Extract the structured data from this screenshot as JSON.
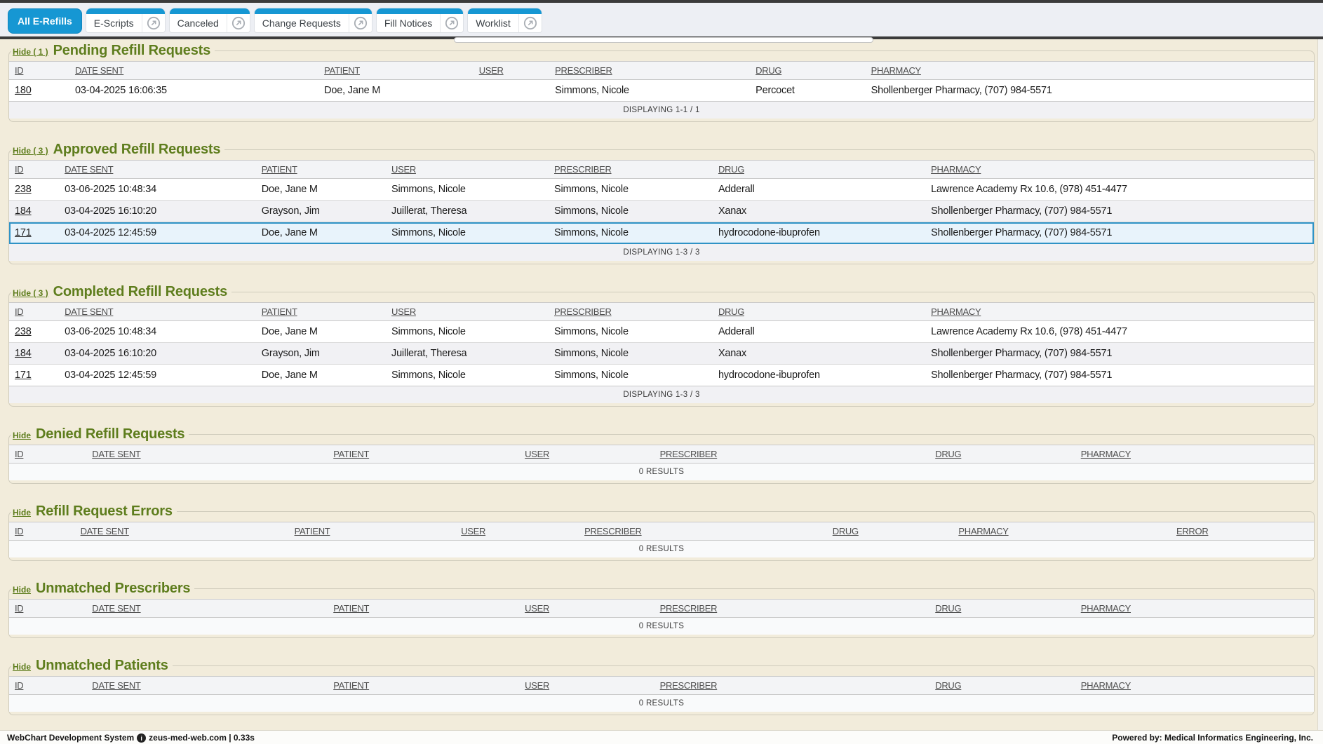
{
  "colors": {
    "section_title_green": "#5e7d1d",
    "tab_blue": "#1697d3",
    "highlight_bg": "#e8f3fb",
    "highlight_border": "#2f93c6",
    "page_beige": "#f2ecdb"
  },
  "tabs": [
    {
      "label": "All E-Refills",
      "active": true,
      "external": false
    },
    {
      "label": "E-Scripts",
      "active": false,
      "external": true
    },
    {
      "label": "Canceled",
      "active": false,
      "external": true
    },
    {
      "label": "Change Requests",
      "active": false,
      "external": true
    },
    {
      "label": "Fill Notices",
      "active": false,
      "external": true
    },
    {
      "label": "Worklist",
      "active": false,
      "external": true
    }
  ],
  "sections": [
    {
      "hide_label": "Hide ( 1 )",
      "title": "Pending Refill Requests",
      "columns": [
        {
          "label": "ID",
          "width": "4.6%"
        },
        {
          "label": "DATE SENT",
          "width": "19.0%"
        },
        {
          "label": "PATIENT",
          "width": "11.8%"
        },
        {
          "label": "USER",
          "width": "5.8%"
        },
        {
          "label": "PRESCRIBER",
          "width": "15.3%"
        },
        {
          "label": "DRUG",
          "width": "8.8%"
        },
        {
          "label": "PHARMACY",
          "width": "34.2%"
        }
      ],
      "rows": [
        [
          "180",
          "03-04-2025 16:06:35",
          "Doe, Jane M",
          "",
          "Simmons, Nicole",
          "Percocet",
          "Shollenberger Pharmacy, (707) 984-5571"
        ]
      ],
      "highlight_row": null,
      "status_text": "DISPLAYING 1-1 / 1",
      "status_type": "displaying"
    },
    {
      "hide_label": "Hide ( 3 )",
      "title": "Approved Refill Requests",
      "columns": [
        {
          "label": "ID",
          "width": "3.8%"
        },
        {
          "label": "DATE SENT",
          "width": "15.0%"
        },
        {
          "label": "PATIENT",
          "width": "9.9%"
        },
        {
          "label": "USER",
          "width": "12.4%"
        },
        {
          "label": "PRESCRIBER",
          "width": "12.5%"
        },
        {
          "label": "DRUG",
          "width": "16.2%"
        },
        {
          "label": "PHARMACY",
          "width": "29.6%"
        }
      ],
      "rows": [
        [
          "238",
          "03-06-2025 10:48:34",
          "Doe, Jane M",
          "Simmons, Nicole",
          "Simmons, Nicole",
          "Adderall",
          "Lawrence Academy Rx 10.6, (978) 451-4477"
        ],
        [
          "184",
          "03-04-2025 16:10:20",
          "Grayson, Jim",
          "Juillerat, Theresa",
          "Simmons, Nicole",
          "Xanax",
          "Shollenberger Pharmacy, (707) 984-5571"
        ],
        [
          "171",
          "03-04-2025 12:45:59",
          "Doe, Jane M",
          "Simmons, Nicole",
          "Simmons, Nicole",
          "hydrocodone-ibuprofen",
          "Shollenberger Pharmacy, (707) 984-5571"
        ]
      ],
      "highlight_row": 2,
      "status_text": "DISPLAYING 1-3 / 3",
      "status_type": "displaying"
    },
    {
      "hide_label": "Hide ( 3 )",
      "title": "Completed Refill Requests",
      "columns": [
        {
          "label": "ID",
          "width": "3.8%"
        },
        {
          "label": "DATE SENT",
          "width": "15.0%"
        },
        {
          "label": "PATIENT",
          "width": "9.9%"
        },
        {
          "label": "USER",
          "width": "12.4%"
        },
        {
          "label": "PRESCRIBER",
          "width": "12.5%"
        },
        {
          "label": "DRUG",
          "width": "16.2%"
        },
        {
          "label": "PHARMACY",
          "width": "29.6%"
        }
      ],
      "rows": [
        [
          "238",
          "03-06-2025 10:48:34",
          "Doe, Jane M",
          "Simmons, Nicole",
          "Simmons, Nicole",
          "Adderall",
          "Lawrence Academy Rx 10.6, (978) 451-4477"
        ],
        [
          "184",
          "03-04-2025 16:10:20",
          "Grayson, Jim",
          "Juillerat, Theresa",
          "Simmons, Nicole",
          "Xanax",
          "Shollenberger Pharmacy, (707) 984-5571"
        ],
        [
          "171",
          "03-04-2025 12:45:59",
          "Doe, Jane M",
          "Simmons, Nicole",
          "Simmons, Nicole",
          "hydrocodone-ibuprofen",
          "Shollenberger Pharmacy, (707) 984-5571"
        ]
      ],
      "highlight_row": null,
      "status_text": "DISPLAYING 1-3 / 3",
      "status_type": "displaying"
    },
    {
      "hide_label": "Hide",
      "title": "Denied Refill Requests",
      "columns": [
        {
          "label": "ID",
          "width": "5.9%"
        },
        {
          "label": "DATE SENT",
          "width": "18.4%"
        },
        {
          "label": "PATIENT",
          "width": "14.6%"
        },
        {
          "label": "USER",
          "width": "10.3%"
        },
        {
          "label": "PRESCRIBER",
          "width": "21.0%"
        },
        {
          "label": "DRUG",
          "width": "11.1%"
        },
        {
          "label": "PHARMACY",
          "width": "18.2%"
        }
      ],
      "rows": [],
      "highlight_row": null,
      "status_text": "0 RESULTS",
      "status_type": "zero"
    },
    {
      "hide_label": "Hide",
      "title": "Refill Request Errors",
      "columns": [
        {
          "label": "ID",
          "width": "5.0%"
        },
        {
          "label": "DATE SENT",
          "width": "16.3%"
        },
        {
          "label": "PATIENT",
          "width": "12.7%"
        },
        {
          "label": "USER",
          "width": "9.4%"
        },
        {
          "label": "PRESCRIBER",
          "width": "18.9%"
        },
        {
          "label": "DRUG",
          "width": "9.6%"
        },
        {
          "label": "PHARMACY",
          "width": "16.6%"
        },
        {
          "label": "ERROR",
          "width": "10.9%"
        }
      ],
      "rows": [],
      "highlight_row": null,
      "status_text": "0 RESULTS",
      "status_type": "zero"
    },
    {
      "hide_label": "Hide",
      "title": "Unmatched Prescribers",
      "columns": [
        {
          "label": "ID",
          "width": "5.9%"
        },
        {
          "label": "DATE SENT",
          "width": "18.4%"
        },
        {
          "label": "PATIENT",
          "width": "14.6%"
        },
        {
          "label": "USER",
          "width": "10.3%"
        },
        {
          "label": "PRESCRIBER",
          "width": "21.0%"
        },
        {
          "label": "DRUG",
          "width": "11.1%"
        },
        {
          "label": "PHARMACY",
          "width": "18.2%"
        }
      ],
      "rows": [],
      "highlight_row": null,
      "status_text": "0 RESULTS",
      "status_type": "zero"
    },
    {
      "hide_label": "Hide",
      "title": "Unmatched Patients",
      "columns": [
        {
          "label": "ID",
          "width": "5.9%"
        },
        {
          "label": "DATE SENT",
          "width": "18.4%"
        },
        {
          "label": "PATIENT",
          "width": "14.6%"
        },
        {
          "label": "USER",
          "width": "10.3%"
        },
        {
          "label": "PRESCRIBER",
          "width": "21.0%"
        },
        {
          "label": "DRUG",
          "width": "11.1%"
        },
        {
          "label": "PHARMACY",
          "width": "18.2%"
        }
      ],
      "rows": [],
      "highlight_row": null,
      "status_text": "0 RESULTS",
      "status_type": "zero"
    }
  ],
  "footer": {
    "system_label": "WebChart Development System",
    "host_info": "zeus-med-web.com | 0.33s",
    "powered_by": "Powered by: Medical Informatics Engineering, Inc."
  }
}
